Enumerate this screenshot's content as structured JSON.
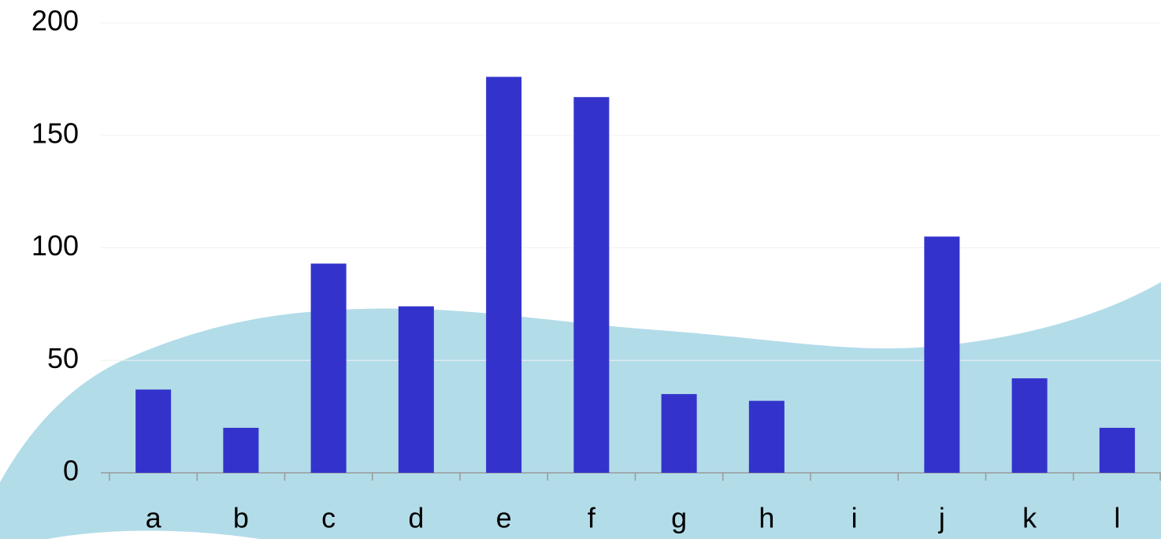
{
  "chart_data": {
    "type": "bar",
    "categories": [
      "a",
      "b",
      "c",
      "d",
      "e",
      "f",
      "g",
      "h",
      "i",
      "j",
      "k",
      "l"
    ],
    "values": [
      37,
      20,
      93,
      74,
      176,
      167,
      35,
      32,
      0,
      105,
      42,
      20
    ],
    "color": "#3333cc",
    "ylim": [
      0,
      200
    ],
    "yticks": [
      0,
      50,
      100,
      150,
      200
    ],
    "grid": true
  }
}
